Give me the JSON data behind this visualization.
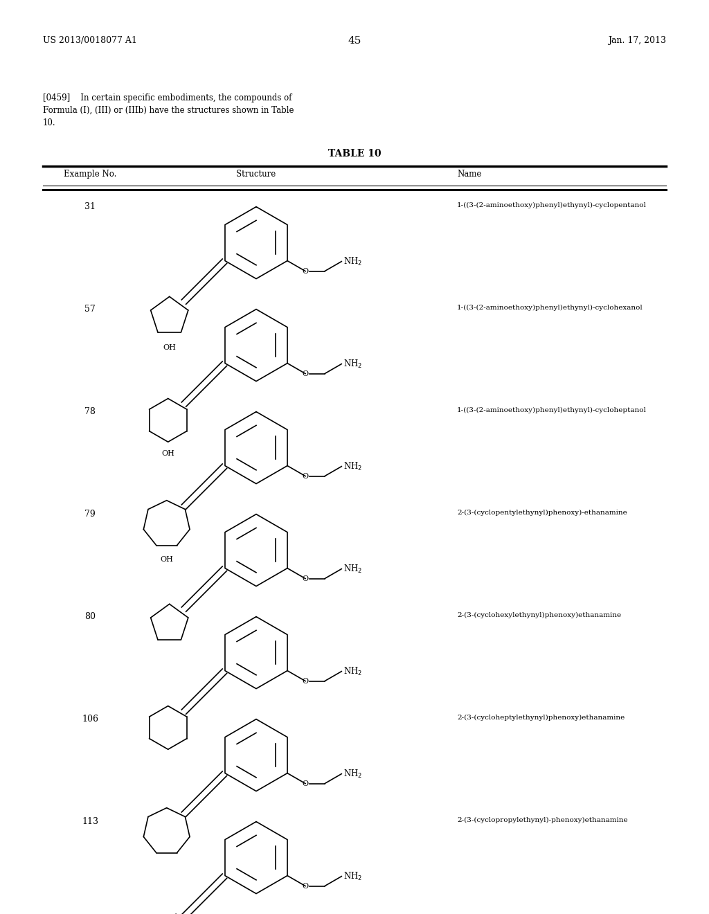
{
  "page_number": "45",
  "patent_number": "US 2013/0018077 A1",
  "patent_date": "Jan. 17, 2013",
  "para_lines": [
    "[0459]    In certain specific embodiments, the compounds of",
    "Formula (I), (III) or (IIIb) have the structures shown in Table",
    "10."
  ],
  "table_title": "TABLE 10",
  "col_headers": [
    "Example No.",
    "Structure",
    "Name"
  ],
  "background_color": "#ffffff",
  "rows": [
    {
      "example": "31",
      "name": "1-((3-(2-aminoethoxy)phenyl)ethynyl)-cyclopentanol",
      "ring_n": 5,
      "ring_r": 0.3,
      "has_oh": true
    },
    {
      "example": "57",
      "name": "1-((3-(2-aminoethoxy)phenyl)ethynyl)-cyclohexanol",
      "ring_n": 6,
      "ring_r": 0.33,
      "has_oh": true
    },
    {
      "example": "78",
      "name": "1-((3-(2-aminoethoxy)phenyl)ethynyl)-cycloheptanol",
      "ring_n": 7,
      "ring_r": 0.36,
      "has_oh": true
    },
    {
      "example": "79",
      "name": "2-(3-(cyclopentylethynyl)phenoxy)-ethanamine",
      "ring_n": 5,
      "ring_r": 0.3,
      "has_oh": false
    },
    {
      "example": "80",
      "name": "2-(3-(cyclohexylethynyl)phenoxy)ethanamine",
      "ring_n": 6,
      "ring_r": 0.33,
      "has_oh": false
    },
    {
      "example": "106",
      "name": "2-(3-(cycloheptylethynyl)phenoxy)ethanamine",
      "ring_n": 7,
      "ring_r": 0.36,
      "has_oh": false
    },
    {
      "example": "113",
      "name": "2-(3-(cyclopropylethynyl)-phenoxy)ethanamine",
      "ring_n": 3,
      "ring_r": 0.16,
      "has_oh": false
    }
  ]
}
